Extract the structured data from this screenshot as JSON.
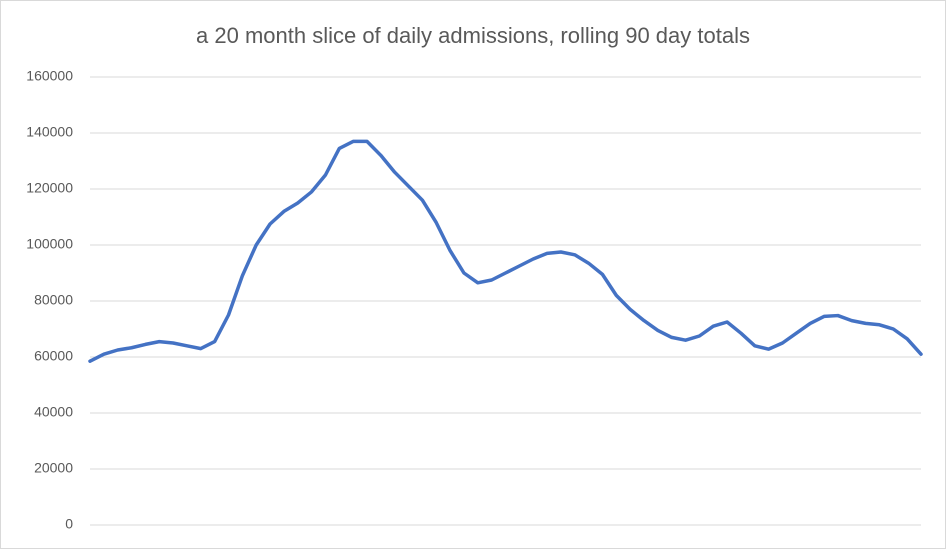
{
  "chart_data": {
    "type": "line",
    "title": "a 20 month slice of daily admissions, rolling 90 day totals",
    "series": [
      {
        "color": "#4472c4",
        "values": [
          58500,
          61000,
          62500,
          63300,
          64500,
          65500,
          65000,
          64000,
          63000,
          65500,
          75000,
          89000,
          100000,
          107500,
          112000,
          115000,
          119000,
          125000,
          134500,
          137000,
          137000,
          132000,
          126000,
          121000,
          116000,
          108000,
          98000,
          90000,
          86500,
          87500,
          90000,
          92500,
          95000,
          97000,
          97500,
          96500,
          93500,
          89500,
          82000,
          77000,
          73000,
          69500,
          67000,
          66000,
          67500,
          71000,
          72500,
          68500,
          64000,
          62800,
          65000,
          68500,
          72000,
          74500,
          74800,
          73000,
          72000,
          71500,
          70000,
          66500,
          61000
        ]
      }
    ],
    "ylim": [
      0,
      160000
    ],
    "yticks": [
      0,
      20000,
      40000,
      60000,
      80000,
      100000,
      120000,
      140000,
      160000
    ],
    "grid": true
  }
}
